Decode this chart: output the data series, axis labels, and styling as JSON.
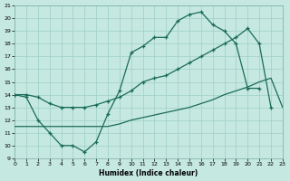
{
  "xlabel": "Humidex (Indice chaleur)",
  "bg_color": "#c5e8e0",
  "grid_color": "#9ecfc5",
  "line_color": "#1a6b58",
  "xmin": 0,
  "xmax": 23,
  "ymin": 9,
  "ymax": 21,
  "xticks": [
    0,
    1,
    2,
    3,
    4,
    5,
    6,
    7,
    8,
    9,
    10,
    11,
    12,
    13,
    14,
    15,
    16,
    17,
    18,
    19,
    20,
    21,
    22,
    23
  ],
  "yticks": [
    9,
    10,
    11,
    12,
    13,
    14,
    15,
    16,
    17,
    18,
    19,
    20,
    21
  ],
  "line_upper_x": [
    0,
    1,
    2,
    3,
    4,
    5,
    6,
    7,
    8,
    9,
    10,
    11,
    12,
    13,
    14,
    15,
    16,
    17,
    18,
    19,
    20,
    21
  ],
  "line_upper_y": [
    14,
    13.8,
    12.0,
    11.0,
    10.0,
    10.0,
    9.5,
    10.3,
    12.5,
    14.3,
    17.3,
    17.8,
    18.5,
    18.5,
    19.8,
    20.3,
    20.5,
    19.5,
    19.0,
    18.0,
    14.5,
    14.5
  ],
  "line_lower_x": [
    0,
    1,
    2,
    3,
    4,
    5,
    6,
    7,
    8,
    9,
    10,
    11,
    12,
    13,
    14,
    15,
    16,
    17,
    18,
    19,
    20,
    21,
    22,
    23
  ],
  "line_lower_y": [
    11.5,
    11.5,
    11.5,
    11.5,
    11.5,
    11.5,
    11.5,
    11.5,
    11.5,
    11.7,
    12.0,
    12.2,
    12.4,
    12.6,
    12.8,
    13.0,
    13.3,
    13.6,
    14.0,
    14.3,
    14.6,
    15.0,
    15.3,
    13.0
  ],
  "line_mid_x": [
    0,
    1,
    2,
    3,
    4,
    5,
    6,
    7,
    8,
    9,
    10,
    11,
    12,
    13,
    14,
    15,
    16,
    17,
    18,
    19,
    20,
    21,
    22,
    23
  ],
  "line_mid_y": [
    14,
    14,
    13.8,
    13.3,
    13.0,
    13.0,
    13.0,
    13.2,
    13.5,
    13.8,
    14.3,
    15.0,
    15.3,
    15.5,
    16.0,
    16.5,
    17.0,
    17.5,
    18.0,
    18.5,
    19.2,
    18.0,
    13.0,
    null
  ]
}
